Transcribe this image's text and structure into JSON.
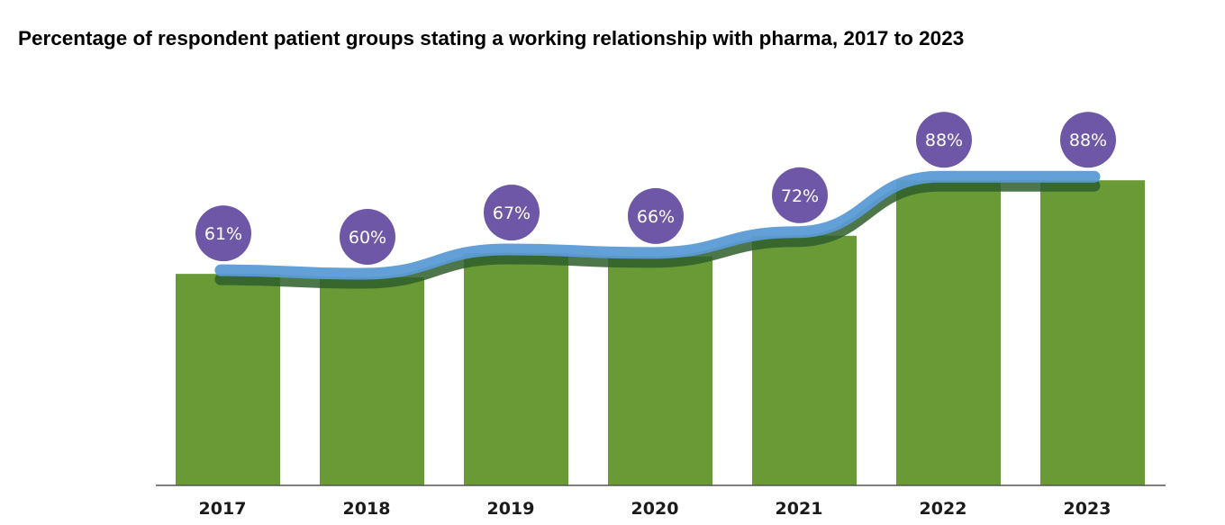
{
  "title": "Percentage of respondent patient groups stating a working relationship with pharma, 2017 to 2023",
  "chart_data": {
    "type": "bar",
    "categories": [
      "2017",
      "2018",
      "2019",
      "2020",
      "2021",
      "2022",
      "2023"
    ],
    "values": [
      61,
      60,
      67,
      66,
      72,
      88,
      88
    ],
    "data_labels": [
      "61%",
      "60%",
      "67%",
      "66%",
      "72%",
      "88%",
      "88%"
    ],
    "title": "Percentage of respondent patient groups stating a working relationship with pharma, 2017 to 2023",
    "xlabel": "",
    "ylabel": "",
    "ylim": [
      0,
      100
    ],
    "grid": false,
    "overlay": "trend line over bars",
    "colors": {
      "bar": "#6a9a35",
      "line": "#5b9bd5",
      "line_shadow": "#2e5e2c",
      "label_bubble": "#6e57a6",
      "axis": "#555555"
    }
  }
}
